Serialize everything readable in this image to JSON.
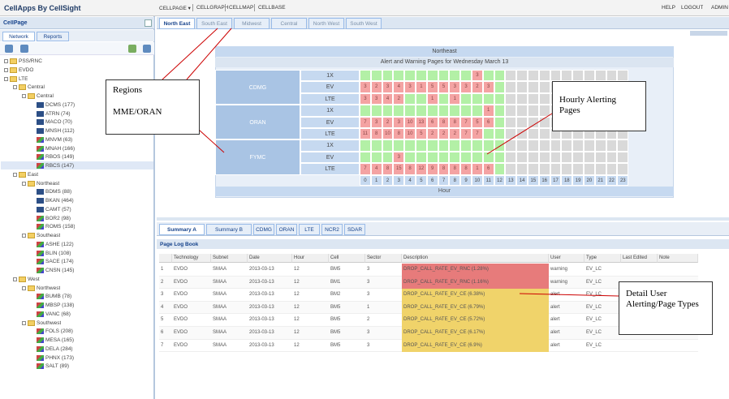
{
  "header": {
    "title": "CellApps By CellSight",
    "nav": [
      "CELLPAGE ▾",
      "CELLGRAPH",
      "CELLMAP",
      "CELLBASE"
    ],
    "right": [
      "HELP",
      "LOGOUT",
      "ADMIN"
    ]
  },
  "sidebar": {
    "title": "CellPage",
    "tabs": [
      "Network",
      "Reports"
    ],
    "tree": [
      {
        "label": "PSS/RNC",
        "depth": 0,
        "icon": "folder"
      },
      {
        "label": "EVDO",
        "depth": 0,
        "icon": "folder"
      },
      {
        "label": "LTE",
        "depth": 0,
        "icon": "folder"
      },
      {
        "label": "Central",
        "depth": 1,
        "icon": "folder"
      },
      {
        "label": "Central",
        "depth": 2,
        "icon": "folder"
      },
      {
        "label": "DCMS (177)",
        "depth": 3,
        "icon": "cell"
      },
      {
        "label": "ATRN (74)",
        "depth": 3,
        "icon": "cell"
      },
      {
        "label": "MACO (70)",
        "depth": 3,
        "icon": "cell"
      },
      {
        "label": "MNSH (112)",
        "depth": 3,
        "icon": "cell"
      },
      {
        "label": "MNVM (63)",
        "depth": 3,
        "icon": "chart"
      },
      {
        "label": "MNAH (166)",
        "depth": 3,
        "icon": "chart"
      },
      {
        "label": "RBOS (149)",
        "depth": 3,
        "icon": "chart"
      },
      {
        "label": "RBCS (147)",
        "depth": 3,
        "icon": "chart"
      },
      {
        "label": "East",
        "depth": 1,
        "icon": "folder"
      },
      {
        "label": "Northeast",
        "depth": 2,
        "icon": "folder"
      },
      {
        "label": "BDMS (88)",
        "depth": 3,
        "icon": "cell"
      },
      {
        "label": "BKAN (464)",
        "depth": 3,
        "icon": "cell"
      },
      {
        "label": "CAMT (57)",
        "depth": 3,
        "icon": "cell"
      },
      {
        "label": "BOR2 (98)",
        "depth": 3,
        "icon": "chart"
      },
      {
        "label": "ROMS (158)",
        "depth": 3,
        "icon": "chart"
      },
      {
        "label": "Southeast",
        "depth": 2,
        "icon": "folder"
      },
      {
        "label": "ASHE (122)",
        "depth": 3,
        "icon": "chart"
      },
      {
        "label": "BLIN (108)",
        "depth": 3,
        "icon": "chart"
      },
      {
        "label": "SACE (174)",
        "depth": 3,
        "icon": "chart"
      },
      {
        "label": "CNSN (145)",
        "depth": 3,
        "icon": "chart"
      },
      {
        "label": "West",
        "depth": 1,
        "icon": "folder"
      },
      {
        "label": "Northwest",
        "depth": 2,
        "icon": "folder"
      },
      {
        "label": "BUMB (78)",
        "depth": 3,
        "icon": "chart"
      },
      {
        "label": "MBSP (138)",
        "depth": 3,
        "icon": "chart"
      },
      {
        "label": "VANC (68)",
        "depth": 3,
        "icon": "chart"
      },
      {
        "label": "Southwest",
        "depth": 2,
        "icon": "folder"
      },
      {
        "label": "FOLS (208)",
        "depth": 3,
        "icon": "chart"
      },
      {
        "label": "MESA (165)",
        "depth": 3,
        "icon": "chart"
      },
      {
        "label": "DELA (284)",
        "depth": 3,
        "icon": "chart"
      },
      {
        "label": "PHNX (173)",
        "depth": 3,
        "icon": "chart"
      },
      {
        "label": "SALT (89)",
        "depth": 3,
        "icon": "chart"
      }
    ],
    "selected": 12
  },
  "region_tabs": [
    "North East",
    "South East",
    "Midwest",
    "Central",
    "North West",
    "South West"
  ],
  "grid": {
    "title": "Northeast",
    "subtitle": "Alert and Warning Pages for Wednesday March 13",
    "hours": [
      0,
      1,
      2,
      3,
      4,
      5,
      6,
      7,
      8,
      9,
      10,
      11,
      12,
      13,
      14,
      15,
      16,
      17,
      18,
      19,
      20,
      21,
      22,
      23
    ],
    "hour_label": "Hour",
    "elapsed_hours": 13,
    "regions": [
      {
        "name": "CDMG",
        "rows": [
          {
            "tech": "1X",
            "cells": [
              null,
              null,
              null,
              null,
              null,
              null,
              null,
              null,
              null,
              null,
              3,
              null,
              null,
              null,
              null,
              null,
              null,
              null,
              null,
              null,
              null,
              null,
              null,
              null
            ]
          },
          {
            "tech": "EV",
            "cells": [
              3,
              2,
              3,
              4,
              3,
              1,
              5,
              5,
              3,
              3,
              2,
              3,
              null,
              null,
              null,
              null,
              null,
              null,
              null,
              null,
              null,
              null,
              null,
              null
            ]
          },
          {
            "tech": "LTE",
            "cells": [
              3,
              3,
              4,
              2,
              null,
              null,
              1,
              null,
              1,
              null,
              null,
              null,
              null,
              null,
              null,
              null,
              null,
              null,
              null,
              null,
              null,
              null,
              null,
              null
            ]
          }
        ]
      },
      {
        "name": "ORAN",
        "rows": [
          {
            "tech": "1X",
            "cells": [
              null,
              null,
              null,
              null,
              null,
              null,
              null,
              null,
              null,
              null,
              null,
              1,
              null,
              null,
              null,
              null,
              null,
              null,
              null,
              null,
              null,
              null,
              null,
              null
            ]
          },
          {
            "tech": "EV",
            "cells": [
              7,
              3,
              2,
              3,
              10,
              13,
              6,
              8,
              8,
              7,
              5,
              6,
              null,
              null,
              null,
              null,
              null,
              null,
              null,
              null,
              null,
              null,
              null,
              null
            ]
          },
          {
            "tech": "LTE",
            "cells": [
              11,
              8,
              10,
              8,
              10,
              5,
              2,
              2,
              2,
              7,
              7,
              null,
              null,
              null,
              null,
              null,
              null,
              null,
              null,
              null,
              null,
              null,
              null,
              null
            ]
          }
        ]
      },
      {
        "name": "FYMC",
        "rows": [
          {
            "tech": "1X",
            "cells": [
              null,
              null,
              null,
              null,
              null,
              null,
              null,
              null,
              null,
              null,
              null,
              null,
              null,
              null,
              null,
              null,
              null,
              null,
              null,
              null,
              null,
              null,
              null,
              null
            ]
          },
          {
            "tech": "EV",
            "cells": [
              null,
              null,
              null,
              3,
              null,
              null,
              null,
              null,
              null,
              null,
              null,
              null,
              null,
              null,
              null,
              null,
              null,
              null,
              null,
              null,
              null,
              null,
              null,
              null
            ]
          },
          {
            "tech": "LTE",
            "cells": [
              7,
              4,
              8,
              15,
              8,
              12,
              9,
              8,
              8,
              8,
              1,
              6,
              null,
              null,
              null,
              null,
              null,
              null,
              null,
              null,
              null,
              null,
              null,
              null
            ]
          }
        ]
      }
    ]
  },
  "bottom_tabs": [
    "Summary A",
    "Summary B",
    "CDMG",
    "ORAN",
    "LTE",
    "NCR2",
    "SDAR"
  ],
  "log": {
    "title": "Page Log Book",
    "columns": [
      "",
      "Technology",
      "Subnet",
      "Date",
      "Hour",
      "Cell",
      "Sector",
      "Description",
      "User",
      "Type",
      "Last Edited",
      "Note"
    ],
    "rows": [
      [
        "1",
        "EVDO",
        "SMAA",
        "2013-03-13",
        "12",
        "BM5",
        "3",
        "DROP_CALL_RATE_EV_RNC (1.28%)",
        "warning",
        "EV_LC",
        "",
        ""
      ],
      [
        "2",
        "EVDO",
        "SMAA",
        "2013-03-13",
        "12",
        "BM1",
        "3",
        "DROP_CALL_RATE_EV_RNC (1.16%)",
        "warning",
        "EV_LC",
        "",
        ""
      ],
      [
        "3",
        "EVDO",
        "SMAA",
        "2013-03-13",
        "12",
        "BM2",
        "3",
        "DROP_CALL_RATE_EV_CE (6.38%)",
        "alert",
        "EV_LC",
        "",
        ""
      ],
      [
        "4",
        "EVDO",
        "SMAA",
        "2013-03-13",
        "12",
        "BM5",
        "1",
        "DROP_CALL_RATE_EV_CE (6.79%)",
        "alert",
        "EV_LC",
        "",
        ""
      ],
      [
        "5",
        "EVDO",
        "SMAA",
        "2013-03-13",
        "12",
        "BM5",
        "2",
        "DROP_CALL_RATE_EV_CE (5.72%)",
        "alert",
        "EV_LC",
        "",
        ""
      ],
      [
        "6",
        "EVDO",
        "SMAA",
        "2013-03-13",
        "12",
        "BM5",
        "3",
        "DROP_CALL_RATE_EV_CE (6.17%)",
        "alert",
        "EV_LC",
        "",
        ""
      ],
      [
        "7",
        "EVDO",
        "SMAA",
        "2013-03-13",
        "12",
        "BM5",
        "3",
        "DROP_CALL_RATE_EV_CE (6.9%)",
        "alert",
        "EV_LC",
        "",
        ""
      ]
    ],
    "row_colors": [
      "#e77b7b",
      "#e77b7b",
      "#f0d36a",
      "#f0d36a",
      "#f0d36a",
      "#f0d36a",
      "#f0d36a"
    ]
  },
  "callouts": {
    "regions": "Regions",
    "mme": "MME/ORAN",
    "hourly": "Hourly Alerting Pages",
    "detail": "Detail User Alerting/Page Types"
  }
}
